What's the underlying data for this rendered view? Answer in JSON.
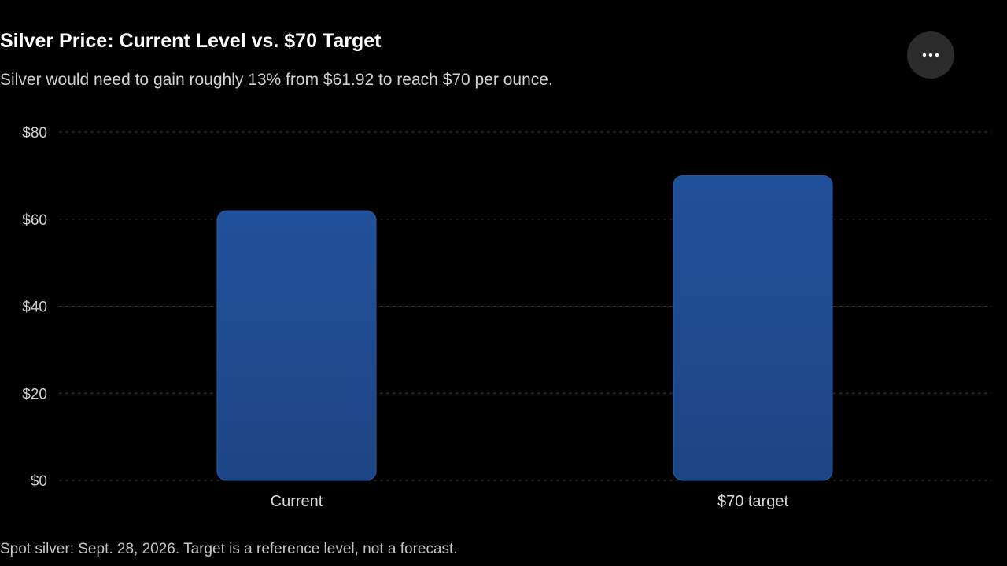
{
  "header": {
    "title": "Silver Price: Current Level vs. $70 Target",
    "subtitle": "Silver would need to gain roughly 13% from $61.92 to reach $70 per ounce.",
    "more_icon": "more-horizontal-icon"
  },
  "chart_data": {
    "type": "bar",
    "categories": [
      "Current",
      "$70 target"
    ],
    "values": [
      61.92,
      70
    ],
    "title": "Silver Price: Current Level vs. $70 Target",
    "subtitle": "Silver would need to gain roughly 13% from $61.92 to reach $70 per ounce.",
    "xlabel": "",
    "ylabel": "",
    "ylim": [
      0,
      80
    ],
    "yticks": [
      0,
      20,
      40,
      60,
      80
    ],
    "ytick_labels": [
      "$0",
      "$20",
      "$40",
      "$60",
      "$80"
    ],
    "grid": true,
    "bar_color": "#1f4b91",
    "bar_border_color": "#2a5aa6"
  },
  "footnote": "Spot silver: Sept. 28, 2026. Target is a reference level, not a forecast."
}
